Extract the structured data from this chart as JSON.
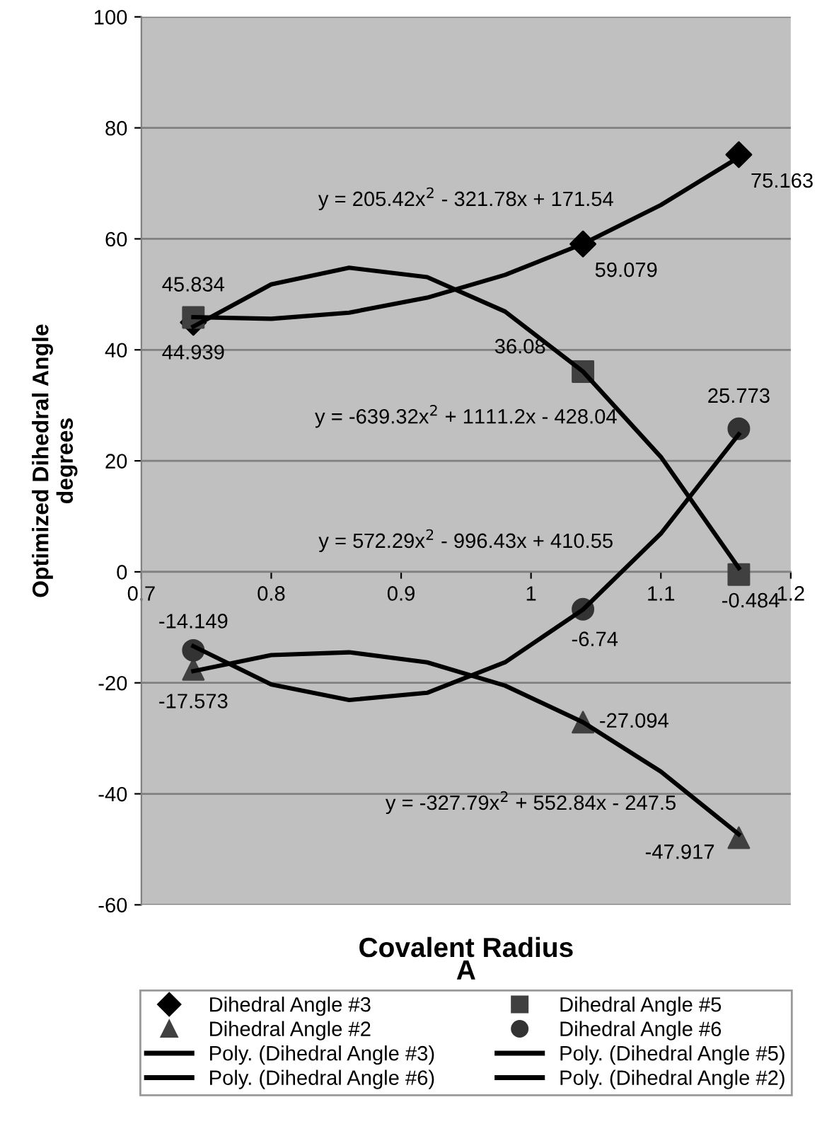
{
  "chart_data": {
    "type": "scatter",
    "xlabel": "Covalent Radius",
    "ylabel": "Optimized Dihedral Angle\ndegrees",
    "xlim": [
      0.7,
      1.2
    ],
    "xticks": [
      0.7,
      0.8,
      0.9,
      1,
      1.1,
      1.2
    ],
    "ylim": [
      -60,
      100
    ],
    "yticks": [
      -60,
      -40,
      -20,
      0,
      20,
      40,
      60,
      80,
      100
    ],
    "grid": "y",
    "legend": "bottom",
    "series": [
      {
        "name": "Dihedral Angle #3",
        "marker": "diamond",
        "color": "#000000",
        "x": [
          0.74,
          1.04,
          1.16
        ],
        "values": [
          44.939,
          59.079,
          75.163
        ],
        "value_labels": [
          "44.939",
          "59.079",
          "75.163"
        ]
      },
      {
        "name": "Dihedral Angle #5",
        "marker": "square",
        "color": "#404040",
        "x": [
          0.74,
          1.04,
          1.16
        ],
        "values": [
          45.834,
          36.08,
          -0.484
        ],
        "value_labels": [
          "45.834",
          "36.08",
          "-0.484"
        ]
      },
      {
        "name": "Dihedral Angle #2",
        "marker": "triangle",
        "color": "#404040",
        "x": [
          0.74,
          1.04,
          1.16
        ],
        "values": [
          -17.573,
          -27.094,
          -47.917
        ],
        "value_labels": [
          "-17.573",
          "-27.094",
          "-47.917"
        ]
      },
      {
        "name": "Dihedral Angle #6",
        "marker": "circle",
        "color": "#333333",
        "x": [
          0.74,
          1.04,
          1.16
        ],
        "values": [
          -14.149,
          -6.74,
          25.773
        ],
        "value_labels": [
          "-14.149",
          "-6.74",
          "25.773"
        ]
      },
      {
        "name": "Poly. (Dihedral Angle #3)",
        "type": "line",
        "color": "#000000",
        "x": [
          0.74,
          0.8,
          0.86,
          0.92,
          0.98,
          1.04,
          1.1,
          1.16
        ],
        "values": [
          45.9,
          45.6,
          46.7,
          49.4,
          53.5,
          59.1,
          66.1,
          74.7
        ]
      },
      {
        "name": "Poly. (Dihedral Angle #5)",
        "type": "line",
        "color": "#000000",
        "x": [
          0.74,
          0.8,
          0.86,
          0.92,
          0.98,
          1.04,
          1.1,
          1.16
        ],
        "values": [
          44.2,
          51.8,
          54.8,
          53.1,
          46.9,
          36.1,
          20.7,
          0.7
        ]
      },
      {
        "name": "Poly. (Dihedral Angle #6)",
        "type": "line",
        "color": "#000000",
        "x": [
          0.74,
          0.8,
          0.86,
          0.92,
          0.98,
          1.04,
          1.1,
          1.16
        ],
        "values": [
          -13.4,
          -20.3,
          -23.1,
          -21.8,
          -16.3,
          -6.8,
          6.9,
          24.8
        ]
      },
      {
        "name": "Poly. (Dihedral Angle #2)",
        "type": "line",
        "color": "#000000",
        "x": [
          0.74,
          0.8,
          0.86,
          0.92,
          0.98,
          1.04,
          1.1,
          1.16
        ],
        "values": [
          -17.9,
          -15.0,
          -14.5,
          -16.3,
          -20.5,
          -27.1,
          -36.0,
          -47.3
        ]
      }
    ],
    "annotations": [
      "y = 205.42x$^{2}$ - 321.78x + 171.54",
      "y = -639.32x$^{2}$ + 1111.2x - 428.04",
      "y = 572.29x$^{2}$ - 996.43x + 410.55",
      "y = -327.79x$^{2}$ + 552.84x - 247.5",
      "A"
    ]
  }
}
